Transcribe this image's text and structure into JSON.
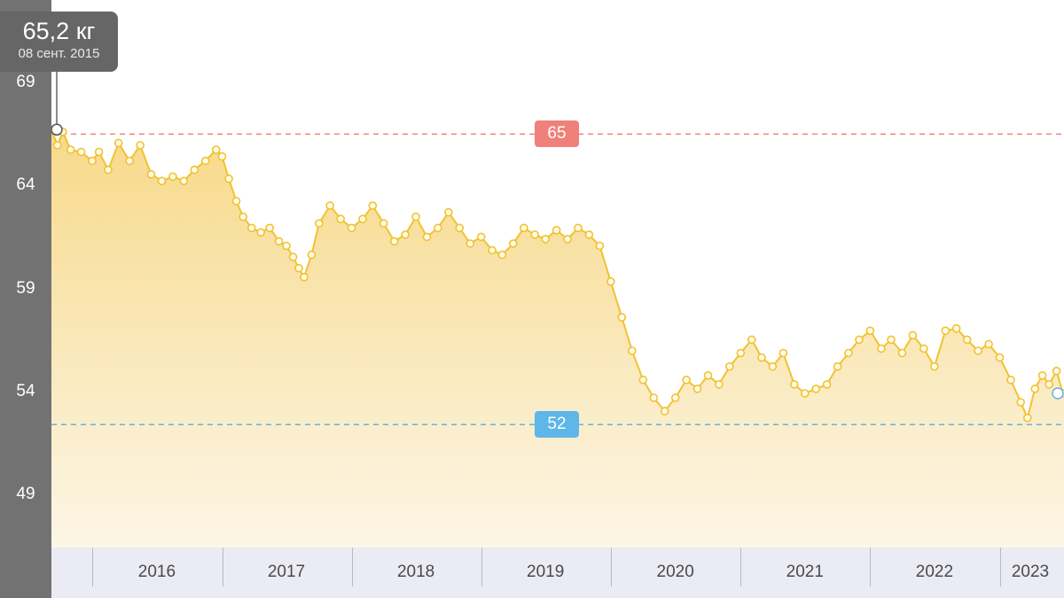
{
  "colors": {
    "line": "#f2c230",
    "area_top": "#f7d98a",
    "area_bottom": "#fcf6e6",
    "upper_ref": "#f0807a",
    "lower_ref": "#5fb6e8",
    "axis_panel": "#727272",
    "x_axis_bar": "#ebebf5"
  },
  "tooltip": {
    "value": "65,2 кг",
    "date": "08 сент. 2015"
  },
  "chart_data": {
    "type": "line",
    "title": "",
    "xlabel": "",
    "ylabel": "",
    "x_range": [
      "2015-09-08",
      "2023-07-01"
    ],
    "ylim": [
      46.5,
      71
    ],
    "y_ticks": [
      "69",
      "64",
      "59",
      "54",
      "49"
    ],
    "x_ticks": [
      "2016",
      "2017",
      "2018",
      "2019",
      "2020",
      "2021",
      "2022",
      "2023"
    ],
    "reference_lines": [
      {
        "label": "65",
        "value": 65,
        "color": "#f0807a"
      },
      {
        "label": "52",
        "value": 52,
        "color": "#5fb6e8"
      }
    ],
    "highlighted_point": {
      "date": "2015-09-08",
      "value": 65.2
    },
    "series": [
      {
        "values": [
          [
            "2015-09-08",
            65.2
          ],
          [
            "2015-09-25",
            64.5
          ],
          [
            "2015-10-10",
            65.1
          ],
          [
            "2015-11-01",
            64.3
          ],
          [
            "2015-12-01",
            64.2
          ],
          [
            "2016-01-01",
            63.8
          ],
          [
            "2016-01-20",
            64.2
          ],
          [
            "2016-02-15",
            63.4
          ],
          [
            "2016-03-15",
            64.6
          ],
          [
            "2016-04-15",
            63.8
          ],
          [
            "2016-05-15",
            64.5
          ],
          [
            "2016-06-15",
            63.2
          ],
          [
            "2016-07-15",
            62.9
          ],
          [
            "2016-08-15",
            63.1
          ],
          [
            "2016-09-15",
            62.9
          ],
          [
            "2016-10-15",
            63.4
          ],
          [
            "2016-11-15",
            63.8
          ],
          [
            "2016-12-15",
            64.3
          ],
          [
            "2017-01-01",
            64.0
          ],
          [
            "2017-01-20",
            63.0
          ],
          [
            "2017-02-10",
            62.0
          ],
          [
            "2017-03-01",
            61.3
          ],
          [
            "2017-03-25",
            60.8
          ],
          [
            "2017-04-20",
            60.6
          ],
          [
            "2017-05-15",
            60.8
          ],
          [
            "2017-06-10",
            60.2
          ],
          [
            "2017-07-01",
            60.0
          ],
          [
            "2017-07-20",
            59.5
          ],
          [
            "2017-08-05",
            59.0
          ],
          [
            "2017-08-20",
            58.6
          ],
          [
            "2017-09-10",
            59.6
          ],
          [
            "2017-10-01",
            61.0
          ],
          [
            "2017-11-01",
            61.8
          ],
          [
            "2017-12-01",
            61.2
          ],
          [
            "2018-01-01",
            60.8
          ],
          [
            "2018-02-01",
            61.2
          ],
          [
            "2018-03-01",
            61.8
          ],
          [
            "2018-04-01",
            61.0
          ],
          [
            "2018-05-01",
            60.2
          ],
          [
            "2018-06-01",
            60.5
          ],
          [
            "2018-07-01",
            61.3
          ],
          [
            "2018-08-01",
            60.4
          ],
          [
            "2018-09-01",
            60.8
          ],
          [
            "2018-10-01",
            61.5
          ],
          [
            "2018-11-01",
            60.8
          ],
          [
            "2018-12-01",
            60.1
          ],
          [
            "2019-01-01",
            60.4
          ],
          [
            "2019-02-01",
            59.8
          ],
          [
            "2019-03-01",
            59.6
          ],
          [
            "2019-04-01",
            60.1
          ],
          [
            "2019-05-01",
            60.8
          ],
          [
            "2019-06-01",
            60.5
          ],
          [
            "2019-07-01",
            60.3
          ],
          [
            "2019-08-01",
            60.7
          ],
          [
            "2019-09-01",
            60.3
          ],
          [
            "2019-10-01",
            60.8
          ],
          [
            "2019-11-01",
            60.5
          ],
          [
            "2019-12-01",
            60.0
          ],
          [
            "2020-01-01",
            58.4
          ],
          [
            "2020-02-01",
            56.8
          ],
          [
            "2020-03-01",
            55.3
          ],
          [
            "2020-04-01",
            54.0
          ],
          [
            "2020-05-01",
            53.2
          ],
          [
            "2020-06-01",
            52.6
          ],
          [
            "2020-07-01",
            53.2
          ],
          [
            "2020-08-01",
            54.0
          ],
          [
            "2020-09-01",
            53.6
          ],
          [
            "2020-10-01",
            54.2
          ],
          [
            "2020-11-01",
            53.8
          ],
          [
            "2020-12-01",
            54.6
          ],
          [
            "2021-01-01",
            55.2
          ],
          [
            "2021-02-01",
            55.8
          ],
          [
            "2021-03-01",
            55.0
          ],
          [
            "2021-04-01",
            54.6
          ],
          [
            "2021-05-01",
            55.2
          ],
          [
            "2021-06-01",
            53.8
          ],
          [
            "2021-07-01",
            53.4
          ],
          [
            "2021-08-01",
            53.6
          ],
          [
            "2021-09-01",
            53.8
          ],
          [
            "2021-10-01",
            54.6
          ],
          [
            "2021-11-01",
            55.2
          ],
          [
            "2021-12-01",
            55.8
          ],
          [
            "2022-01-01",
            56.2
          ],
          [
            "2022-02-01",
            55.4
          ],
          [
            "2022-03-01",
            55.8
          ],
          [
            "2022-04-01",
            55.2
          ],
          [
            "2022-05-01",
            56.0
          ],
          [
            "2022-06-01",
            55.4
          ],
          [
            "2022-07-01",
            54.6
          ],
          [
            "2022-08-01",
            56.2
          ],
          [
            "2022-09-01",
            56.3
          ],
          [
            "2022-10-01",
            55.8
          ],
          [
            "2022-11-01",
            55.3
          ],
          [
            "2022-12-01",
            55.6
          ],
          [
            "2023-01-01",
            55.0
          ],
          [
            "2023-02-01",
            54.0
          ],
          [
            "2023-03-01",
            53.0
          ],
          [
            "2023-03-20",
            52.3
          ],
          [
            "2023-04-10",
            53.6
          ],
          [
            "2023-05-01",
            54.2
          ],
          [
            "2023-05-20",
            53.8
          ],
          [
            "2023-06-10",
            54.4
          ],
          [
            "2023-06-28",
            53.4
          ]
        ]
      }
    ]
  }
}
